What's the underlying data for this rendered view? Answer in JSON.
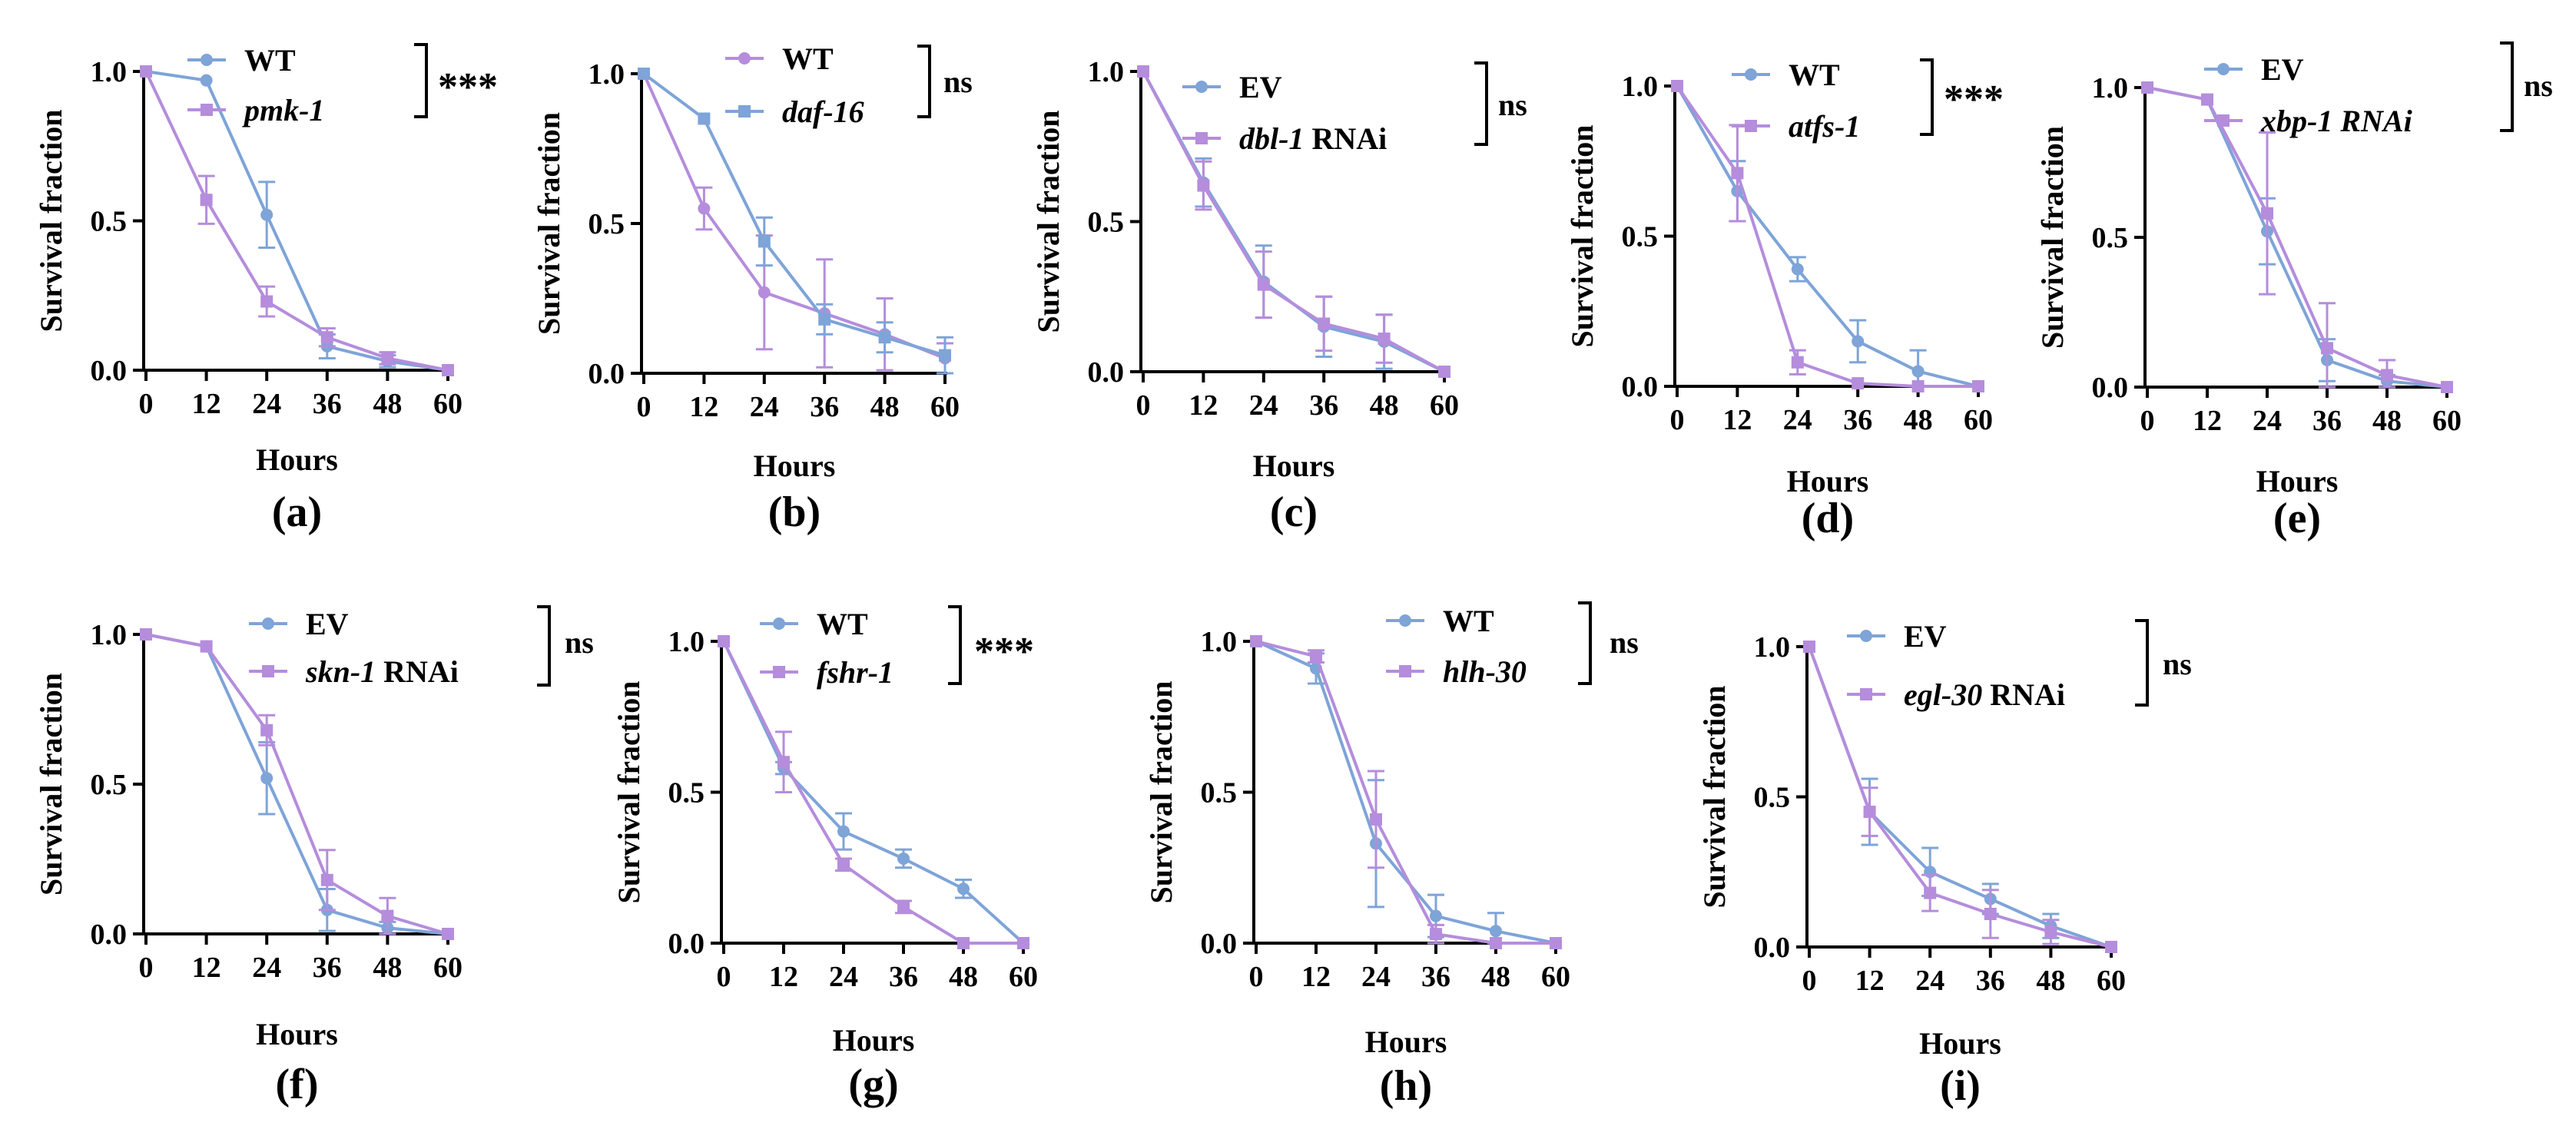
{
  "chart_data": [
    {
      "type": "line",
      "caption": "(a)",
      "xlabel": "Hours",
      "ylabel": "Survival fraction",
      "x": [
        0,
        12,
        24,
        36,
        48,
        60
      ],
      "xticks": [
        "0",
        "12",
        "24",
        "36",
        "48",
        "60"
      ],
      "yticks": [
        "0.0",
        "0.5",
        "1.0"
      ],
      "ylim": [
        0,
        1
      ],
      "significance": "***",
      "series": [
        {
          "name": "WT",
          "italic": false,
          "suffix": "",
          "color": "#7ea4d8",
          "marker": "circle",
          "values": [
            1.0,
            0.97,
            0.52,
            0.08,
            0.03,
            0.0
          ],
          "errors": [
            0,
            0,
            0.11,
            0.04,
            0.02,
            0
          ]
        },
        {
          "name": "pmk-1",
          "italic": true,
          "suffix": "",
          "color": "#b58ddc",
          "marker": "square",
          "values": [
            1.0,
            0.57,
            0.23,
            0.11,
            0.04,
            0.0
          ],
          "errors": [
            0,
            0.08,
            0.05,
            0.03,
            0.02,
            0
          ]
        }
      ]
    },
    {
      "type": "line",
      "caption": "(b)",
      "xlabel": "Hours",
      "ylabel": "Survival fraction",
      "x": [
        0,
        12,
        24,
        36,
        48,
        60
      ],
      "xticks": [
        "0",
        "12",
        "24",
        "36",
        "48",
        "60"
      ],
      "yticks": [
        "0.0",
        "0.5",
        "1.0"
      ],
      "ylim": [
        0,
        1
      ],
      "significance": "ns",
      "series": [
        {
          "name": "WT",
          "italic": false,
          "suffix": "",
          "color": "#b58ddc",
          "marker": "circle",
          "values": [
            1.0,
            0.55,
            0.27,
            0.2,
            0.13,
            0.05
          ],
          "errors": [
            0,
            0.07,
            0.19,
            0.18,
            0.12,
            0.05
          ]
        },
        {
          "name": "daf-16",
          "italic": true,
          "suffix": "",
          "color": "#7ea4d8",
          "marker": "square",
          "values": [
            1.0,
            0.85,
            0.44,
            0.18,
            0.12,
            0.06
          ],
          "errors": [
            0,
            0,
            0.08,
            0.05,
            0.05,
            0.06
          ]
        }
      ]
    },
    {
      "type": "line",
      "caption": "(c)",
      "xlabel": "Hours",
      "ylabel": "Survival fraction",
      "x": [
        0,
        12,
        24,
        36,
        48,
        60
      ],
      "xticks": [
        "0",
        "12",
        "24",
        "36",
        "48",
        "60"
      ],
      "yticks": [
        "0.0",
        "0.5",
        "1.0"
      ],
      "ylim": [
        0,
        1
      ],
      "significance": "ns",
      "series": [
        {
          "name": "EV",
          "italic": false,
          "suffix": "",
          "color": "#7ea4d8",
          "marker": "circle",
          "values": [
            1.0,
            0.63,
            0.3,
            0.15,
            0.1,
            0.0
          ],
          "errors": [
            0,
            0.08,
            0.12,
            0.1,
            0.09,
            0
          ]
        },
        {
          "name": "dbl-1",
          "italic": true,
          "suffix": " RNAi",
          "color": "#b58ddc",
          "marker": "square",
          "values": [
            1.0,
            0.62,
            0.29,
            0.16,
            0.11,
            0.0
          ],
          "errors": [
            0,
            0.08,
            0.11,
            0.09,
            0.08,
            0
          ]
        }
      ]
    },
    {
      "type": "line",
      "caption": "(d)",
      "xlabel": "Hours",
      "ylabel": "Survival fraction",
      "x": [
        0,
        12,
        24,
        36,
        48,
        60
      ],
      "xticks": [
        "0",
        "12",
        "24",
        "36",
        "48",
        "60"
      ],
      "yticks": [
        "0.0",
        "0.5",
        "1.0"
      ],
      "ylim": [
        0,
        1
      ],
      "significance": "***",
      "series": [
        {
          "name": "WT",
          "italic": false,
          "suffix": "",
          "color": "#7ea4d8",
          "marker": "circle",
          "values": [
            1.0,
            0.65,
            0.39,
            0.15,
            0.05,
            0.0
          ],
          "errors": [
            0,
            0.1,
            0.04,
            0.07,
            0.07,
            0
          ]
        },
        {
          "name": "atfs-1",
          "italic": true,
          "suffix": "",
          "color": "#b58ddc",
          "marker": "square",
          "values": [
            1.0,
            0.71,
            0.08,
            0.01,
            0.0,
            0.0
          ],
          "errors": [
            0,
            0.16,
            0.04,
            0,
            0,
            0
          ]
        }
      ]
    },
    {
      "type": "line",
      "caption": "(e)",
      "xlabel": "Hours",
      "ylabel": "Survival fraction",
      "x": [
        0,
        12,
        24,
        36,
        48,
        60
      ],
      "xticks": [
        "0",
        "12",
        "24",
        "36",
        "48",
        "60"
      ],
      "yticks": [
        "0.0",
        "0.5",
        "1.0"
      ],
      "ylim": [
        0,
        1
      ],
      "significance": "ns",
      "series": [
        {
          "name": "EV",
          "italic": false,
          "suffix": "",
          "color": "#7ea4d8",
          "marker": "circle",
          "values": [
            1.0,
            0.96,
            0.52,
            0.09,
            0.02,
            0.0
          ],
          "errors": [
            0,
            0,
            0.11,
            0.07,
            0.02,
            0
          ]
        },
        {
          "name": "xbp-1 RNAi",
          "italic": true,
          "suffix": "",
          "color": "#b58ddc",
          "marker": "square",
          "values": [
            1.0,
            0.96,
            0.58,
            0.13,
            0.04,
            0.0
          ],
          "errors": [
            0,
            0,
            0.27,
            0.15,
            0.05,
            0
          ]
        }
      ]
    },
    {
      "type": "line",
      "caption": "(f)",
      "xlabel": "Hours",
      "ylabel": "Survival fraction",
      "x": [
        0,
        12,
        24,
        36,
        48,
        60
      ],
      "xticks": [
        "0",
        "12",
        "24",
        "36",
        "48",
        "60"
      ],
      "yticks": [
        "0.0",
        "0.5",
        "1.0"
      ],
      "ylim": [
        0,
        1
      ],
      "significance": "ns",
      "series": [
        {
          "name": "EV",
          "italic": false,
          "suffix": "",
          "color": "#7ea4d8",
          "marker": "circle",
          "values": [
            1.0,
            0.96,
            0.52,
            0.08,
            0.02,
            0.0
          ],
          "errors": [
            0,
            0,
            0.12,
            0.07,
            0.02,
            0
          ]
        },
        {
          "name": "skn-1",
          "italic": true,
          "suffix": " RNAi",
          "color": "#b58ddc",
          "marker": "square",
          "values": [
            1.0,
            0.96,
            0.68,
            0.18,
            0.06,
            0.0
          ],
          "errors": [
            0,
            0,
            0.05,
            0.1,
            0.06,
            0
          ]
        }
      ]
    },
    {
      "type": "line",
      "caption": "(g)",
      "xlabel": "Hours",
      "ylabel": "Survival fraction",
      "x": [
        0,
        12,
        24,
        36,
        48,
        60
      ],
      "xticks": [
        "0",
        "12",
        "24",
        "36",
        "48",
        "60"
      ],
      "yticks": [
        "0.0",
        "0.5",
        "1.0"
      ],
      "ylim": [
        0,
        1
      ],
      "significance": "***",
      "series": [
        {
          "name": "WT",
          "italic": false,
          "suffix": "",
          "color": "#7ea4d8",
          "marker": "circle",
          "values": [
            1.0,
            0.58,
            0.37,
            0.28,
            0.18,
            0.0
          ],
          "errors": [
            0,
            0.02,
            0.06,
            0.03,
            0.03,
            0
          ]
        },
        {
          "name": "fshr-1",
          "italic": true,
          "suffix": "",
          "color": "#b58ddc",
          "marker": "square",
          "values": [
            1.0,
            0.6,
            0.26,
            0.12,
            0.0,
            0.0
          ],
          "errors": [
            0,
            0.1,
            0.02,
            0.02,
            0,
            0
          ]
        }
      ]
    },
    {
      "type": "line",
      "caption": "(h)",
      "xlabel": "Hours",
      "ylabel": "Survival fraction",
      "x": [
        0,
        12,
        24,
        36,
        48,
        60
      ],
      "xticks": [
        "0",
        "12",
        "24",
        "36",
        "48",
        "60"
      ],
      "yticks": [
        "0.0",
        "0.5",
        "1.0"
      ],
      "ylim": [
        0,
        1
      ],
      "significance": "ns",
      "series": [
        {
          "name": "WT",
          "italic": false,
          "suffix": "",
          "color": "#7ea4d8",
          "marker": "circle",
          "values": [
            1.0,
            0.91,
            0.33,
            0.09,
            0.04,
            0.0
          ],
          "errors": [
            0,
            0.05,
            0.21,
            0.07,
            0.06,
            0
          ]
        },
        {
          "name": "hlh-30",
          "italic": true,
          "suffix": "",
          "color": "#b58ddc",
          "marker": "square",
          "values": [
            1.0,
            0.95,
            0.41,
            0.03,
            0.0,
            0.0
          ],
          "errors": [
            0,
            0.02,
            0.16,
            0.03,
            0,
            0
          ]
        }
      ]
    },
    {
      "type": "line",
      "caption": "(i)",
      "xlabel": "Hours",
      "ylabel": "Survival fraction",
      "x": [
        0,
        12,
        24,
        36,
        48,
        60
      ],
      "xticks": [
        "0",
        "12",
        "24",
        "36",
        "48",
        "60"
      ],
      "yticks": [
        "0.0",
        "0.5",
        "1.0"
      ],
      "ylim": [
        0,
        1
      ],
      "significance": "ns",
      "series": [
        {
          "name": "EV",
          "italic": false,
          "suffix": "",
          "color": "#7ea4d8",
          "marker": "circle",
          "values": [
            1.0,
            0.45,
            0.25,
            0.16,
            0.07,
            0.0
          ],
          "errors": [
            0,
            0.11,
            0.08,
            0.05,
            0.04,
            0
          ]
        },
        {
          "name": "egl-30",
          "italic": true,
          "suffix": " RNAi",
          "color": "#b58ddc",
          "marker": "square",
          "values": [
            1.0,
            0.45,
            0.18,
            0.11,
            0.05,
            0.0
          ],
          "errors": [
            0,
            0.08,
            0.06,
            0.08,
            0.04,
            0
          ]
        }
      ]
    }
  ]
}
